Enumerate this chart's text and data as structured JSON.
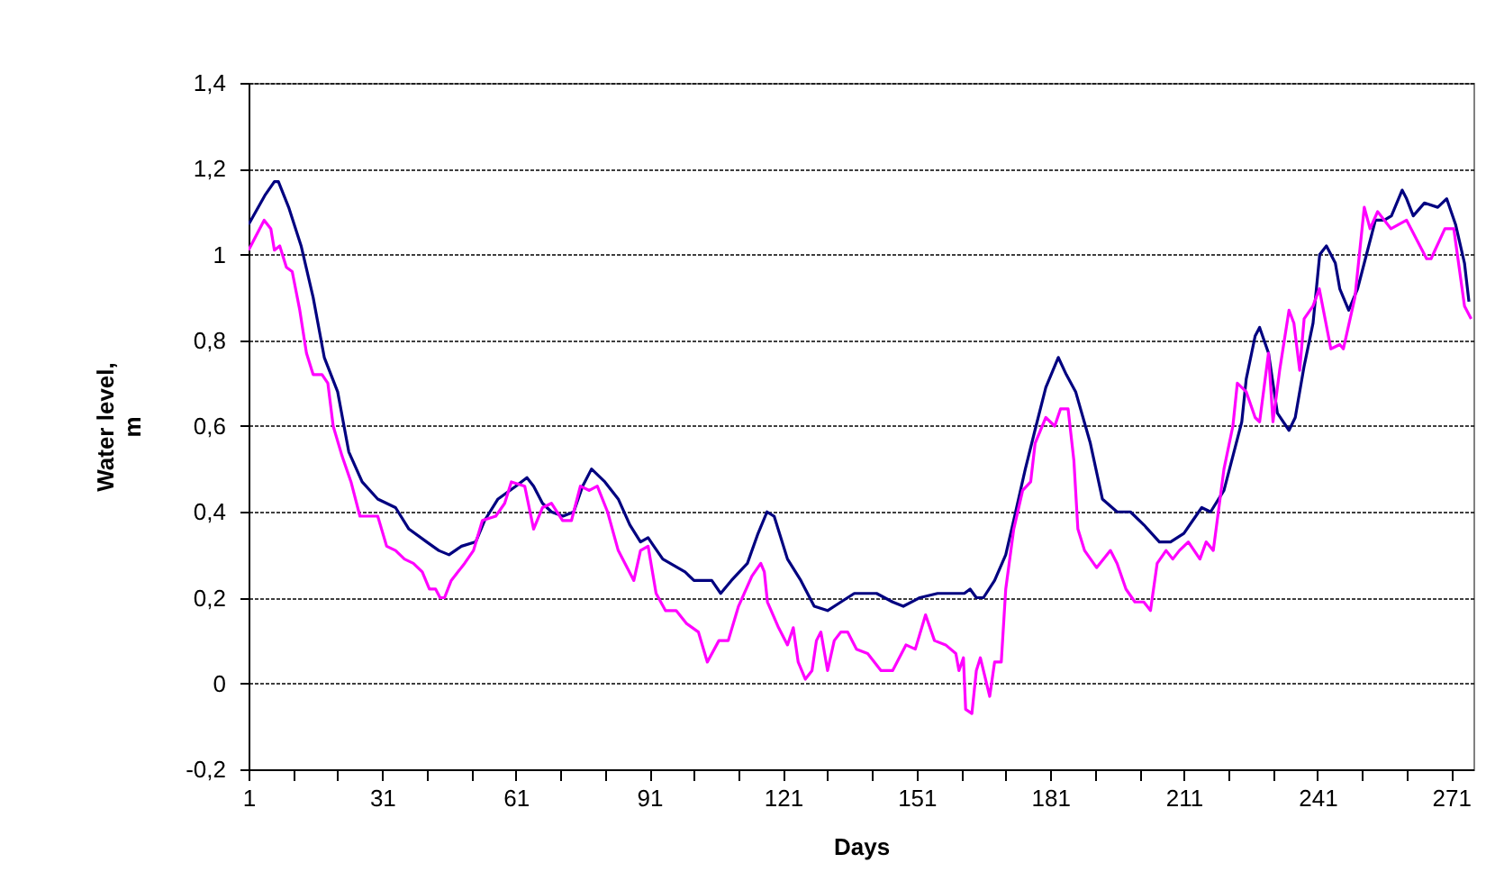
{
  "chart_data": {
    "type": "line",
    "xlabel": "Days",
    "ylabel": "Water level, m",
    "xlim": [
      1,
      276
    ],
    "ylim": [
      -0.2,
      1.4
    ],
    "xticks": [
      1,
      {
        "value": 11,
        "label": null
      },
      {
        "value": 21,
        "label": null
      },
      31,
      {
        "value": 41,
        "label": null
      },
      {
        "value": 51,
        "label": null
      },
      61,
      {
        "value": 71,
        "label": null
      },
      {
        "value": 81,
        "label": null
      },
      91,
      {
        "value": 101,
        "label": null
      },
      {
        "value": 111,
        "label": null
      },
      121,
      {
        "value": 131,
        "label": null
      },
      {
        "value": 141,
        "label": null
      },
      151,
      {
        "value": 161,
        "label": null
      },
      {
        "value": 171,
        "label": null
      },
      181,
      {
        "value": 191,
        "label": null
      },
      {
        "value": 201,
        "label": null
      },
      211,
      {
        "value": 221,
        "label": null
      },
      {
        "value": 231,
        "label": null
      },
      241,
      {
        "value": 251,
        "label": null
      },
      {
        "value": 261,
        "label": null
      },
      271
    ],
    "yticks": [
      {
        "value": -0.2,
        "label": "-0,2"
      },
      0,
      {
        "value": 0.2,
        "label": "0,2"
      },
      {
        "value": 0.4,
        "label": "0,4"
      },
      {
        "value": 0.6,
        "label": "0,6"
      },
      {
        "value": 0.8,
        "label": "0,8"
      },
      1,
      {
        "value": 1.2,
        "label": "1,2"
      },
      {
        "value": 1.4,
        "label": "1,4"
      }
    ],
    "grid": "y",
    "legend": false,
    "marker": "none",
    "line_style": "solid",
    "series": [
      {
        "color": "#000080",
        "x": [
          1,
          4.8,
          6.8,
          7.7,
          10,
          12.8,
          15.5,
          18,
          21,
          23.5,
          26.5,
          30,
          34,
          37,
          41,
          43.7,
          46,
          48.8,
          52,
          54,
          57,
          61,
          63.5,
          65,
          67,
          69,
          71.6,
          74,
          76,
          78,
          81,
          84,
          86.6,
          89,
          90.7,
          92,
          94,
          99,
          101,
          105,
          107,
          109.4,
          113,
          115.4,
          117.4,
          119,
          122,
          125,
          128,
          131,
          134,
          137,
          142,
          145.6,
          148,
          151.7,
          155.7,
          161.7,
          163,
          164.4,
          166,
          168.5,
          171,
          173,
          175.4,
          177.8,
          180,
          182.8,
          184.6,
          186.7,
          190,
          192.7,
          196,
          199,
          202,
          205.5,
          208,
          211,
          213,
          215,
          217,
          220,
          222,
          224,
          225,
          227,
          228,
          230,
          232,
          234.6,
          236,
          238,
          240,
          241.5,
          243,
          245,
          246,
          248,
          250,
          252,
          254,
          256,
          257.6,
          260,
          261,
          262.5,
          265,
          268,
          270,
          272,
          274,
          275
        ],
        "values": [
          1.07,
          1.14,
          1.17,
          1.17,
          1.11,
          1.02,
          0.9,
          0.76,
          0.68,
          0.54,
          0.47,
          0.43,
          0.41,
          0.36,
          0.33,
          0.31,
          0.3,
          0.32,
          0.33,
          0.38,
          0.43,
          0.46,
          0.48,
          0.46,
          0.42,
          0.4,
          0.39,
          0.4,
          0.46,
          0.5,
          0.47,
          0.43,
          0.37,
          0.33,
          0.34,
          0.32,
          0.29,
          0.26,
          0.24,
          0.24,
          0.21,
          0.24,
          0.28,
          0.35,
          0.4,
          0.39,
          0.29,
          0.24,
          0.18,
          0.17,
          0.19,
          0.21,
          0.21,
          0.19,
          0.18,
          0.2,
          0.21,
          0.21,
          0.22,
          0.2,
          0.2,
          0.24,
          0.3,
          0.39,
          0.5,
          0.6,
          0.69,
          0.76,
          0.72,
          0.68,
          0.56,
          0.43,
          0.4,
          0.4,
          0.37,
          0.33,
          0.33,
          0.35,
          0.38,
          0.41,
          0.4,
          0.45,
          0.53,
          0.61,
          0.71,
          0.81,
          0.83,
          0.77,
          0.63,
          0.59,
          0.62,
          0.74,
          0.84,
          1.0,
          1.02,
          0.98,
          0.92,
          0.87,
          0.92,
          1.0,
          1.08,
          1.08,
          1.09,
          1.15,
          1.13,
          1.09,
          1.12,
          1.11,
          1.13,
          1.07,
          0.98,
          0.89
        ]
      },
      {
        "color": "#ff00ff",
        "x": [
          1,
          4.5,
          6,
          6.8,
          8,
          9.5,
          10.8,
          12.5,
          14,
          15.5,
          17.5,
          18.8,
          20,
          22,
          24,
          26,
          30,
          32,
          34,
          36,
          38,
          40,
          41.6,
          43,
          44,
          45,
          46.5,
          49.5,
          51.5,
          53.5,
          56.5,
          58.5,
          60,
          63,
          65,
          67,
          69,
          71.5,
          73.5,
          75.5,
          77.5,
          79.3,
          81.6,
          84,
          87.5,
          89,
          90.7,
          92.5,
          94.6,
          97,
          99.3,
          102,
          104,
          106.6,
          108.7,
          111,
          114,
          116,
          116.8,
          117.5,
          120,
          122,
          123.3,
          124.4,
          126,
          127.5,
          128.5,
          129.5,
          131,
          132.5,
          134,
          135.5,
          137.5,
          140,
          143,
          145.6,
          148.6,
          150.7,
          153,
          155,
          157.5,
          159.8,
          160.5,
          161.5,
          162,
          163.4,
          164.4,
          165.3,
          167.4,
          168.5,
          170,
          171,
          172.8,
          174.8,
          176.6,
          177.6,
          180,
          182,
          183.3,
          185,
          186.3,
          187.2,
          188.7,
          191.4,
          194.5,
          196,
          198,
          200,
          202,
          203.5,
          205,
          207,
          208.5,
          210,
          212,
          214.6,
          216,
          217.6,
          220,
          222,
          223,
          225,
          227,
          228,
          230,
          231,
          232.5,
          234.6,
          235.7,
          237,
          238,
          240,
          241.4,
          244,
          246,
          246.8,
          249.4,
          251.5,
          252.8,
          254.5,
          257.5,
          261,
          263.5,
          265.5,
          266.5,
          269.6,
          271.6,
          274,
          275.5
        ],
        "values": [
          1.01,
          1.08,
          1.06,
          1.01,
          1.02,
          0.97,
          0.96,
          0.87,
          0.77,
          0.72,
          0.72,
          0.7,
          0.6,
          0.53,
          0.47,
          0.39,
          0.39,
          0.32,
          0.31,
          0.29,
          0.28,
          0.26,
          0.22,
          0.22,
          0.2,
          0.2,
          0.24,
          0.28,
          0.31,
          0.38,
          0.39,
          0.42,
          0.47,
          0.46,
          0.36,
          0.41,
          0.42,
          0.38,
          0.38,
          0.46,
          0.45,
          0.46,
          0.4,
          0.31,
          0.24,
          0.31,
          0.32,
          0.21,
          0.17,
          0.17,
          0.14,
          0.12,
          0.05,
          0.1,
          0.1,
          0.18,
          0.25,
          0.28,
          0.26,
          0.19,
          0.13,
          0.09,
          0.13,
          0.05,
          0.01,
          0.03,
          0.1,
          0.12,
          0.03,
          0.1,
          0.12,
          0.12,
          0.08,
          0.07,
          0.03,
          0.03,
          0.09,
          0.08,
          0.16,
          0.1,
          0.09,
          0.07,
          0.03,
          0.06,
          -0.06,
          -0.07,
          0.03,
          0.06,
          -0.03,
          0.05,
          0.05,
          0.22,
          0.36,
          0.45,
          0.47,
          0.56,
          0.62,
          0.6,
          0.64,
          0.64,
          0.52,
          0.36,
          0.31,
          0.27,
          0.31,
          0.28,
          0.22,
          0.19,
          0.19,
          0.17,
          0.28,
          0.31,
          0.29,
          0.31,
          0.33,
          0.29,
          0.33,
          0.31,
          0.5,
          0.6,
          0.7,
          0.68,
          0.62,
          0.61,
          0.77,
          0.61,
          0.73,
          0.87,
          0.84,
          0.73,
          0.85,
          0.88,
          0.92,
          0.78,
          0.79,
          0.78,
          0.9,
          1.11,
          1.06,
          1.1,
          1.06,
          1.08,
          1.03,
          0.99,
          0.99,
          1.06,
          1.06,
          0.88,
          0.85
        ]
      }
    ]
  }
}
